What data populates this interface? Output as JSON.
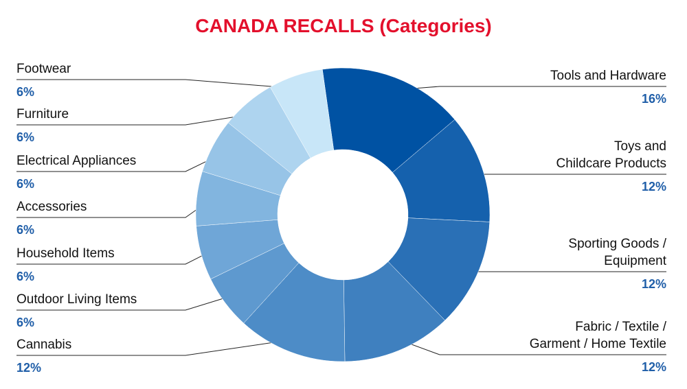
{
  "chart_data": {
    "type": "donut",
    "title": "CANADA RECALLS (Categories)",
    "categories": [
      "Tools and Hardware",
      "Toys and\nChildcare Products",
      "Sporting Goods /\nEquipment",
      "Fabric / Textile /\nGarment / Home Textile",
      "Cannabis",
      "Outdoor Living Items",
      "Household Items",
      "Accessories",
      "Electrical Appliances",
      "Furniture",
      "Footwear"
    ],
    "values": [
      16,
      12,
      12,
      12,
      12,
      6,
      6,
      6,
      6,
      6,
      6
    ],
    "value_labels": [
      "16%",
      "12%",
      "12%",
      "12%",
      "12%",
      "6%",
      "6%",
      "6%",
      "6%",
      "6%",
      "6%"
    ],
    "colors": [
      "#0052a3",
      "#1561ad",
      "#2a70b6",
      "#3f80bf",
      "#4d8cc7",
      "#5e99cf",
      "#6fa6d7",
      "#82b5df",
      "#97c4e7",
      "#aed4ef",
      "#c8e6f8"
    ]
  }
}
